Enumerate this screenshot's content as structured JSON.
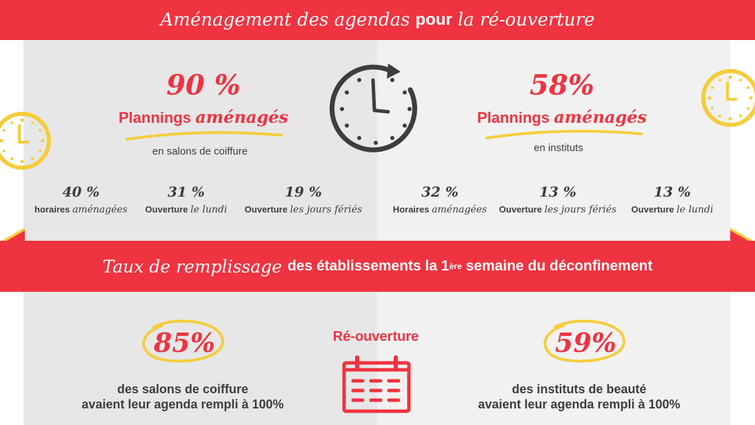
{
  "header": {
    "title_script": "Aménagement des agendas",
    "title_bold": "pour",
    "title_script2": "la ré-ouverture"
  },
  "salons": {
    "pct": "90 %",
    "subtitle_bold": "Plannings",
    "subtitle_script": "aménagés",
    "caption": "en salons de coiffure",
    "stats": [
      {
        "value": "40 %",
        "label": "horaires",
        "label_script": "aménagées"
      },
      {
        "value": "31 %",
        "label": "Ouverture",
        "label_script": "le lundi"
      },
      {
        "value": "19 %",
        "label": "Ouverture",
        "label_script": "les jours fériés"
      }
    ]
  },
  "instituts": {
    "pct": "58%",
    "subtitle_bold": "Plannings",
    "subtitle_script": "aménagés",
    "caption": "en instituts",
    "stats": [
      {
        "value": "32 %",
        "label": "Horaires",
        "label_script": "aménagées"
      },
      {
        "value": "13 %",
        "label": "Ouverture",
        "label_script": "les jours fériés"
      },
      {
        "value": "13 %",
        "label": "Ouverture",
        "label_script": "le lundi"
      }
    ]
  },
  "band": {
    "script": "Taux de remplissage",
    "bold": "des établissements la 1",
    "sup": "ère",
    "bold2": "semaine du déconfinement"
  },
  "bottom": {
    "left": {
      "pct": "85%",
      "line1": "des salons de coiffure",
      "line2": "avaient leur agenda rempli à 100%"
    },
    "center_title": "Ré-ouverture",
    "right": {
      "pct": "59%",
      "line1": "des instituts de beauté",
      "line2": "avaient leur agenda rempli à 100%"
    }
  },
  "colors": {
    "red": "#ef3340",
    "yellow": "#f5cd3c",
    "dark": "#3d3d3d",
    "panel_left": "#e7e7e7",
    "panel_right": "#f1f1f1"
  },
  "icons": [
    "clock-icon",
    "yellow-clock-icon",
    "calendar-icon"
  ]
}
